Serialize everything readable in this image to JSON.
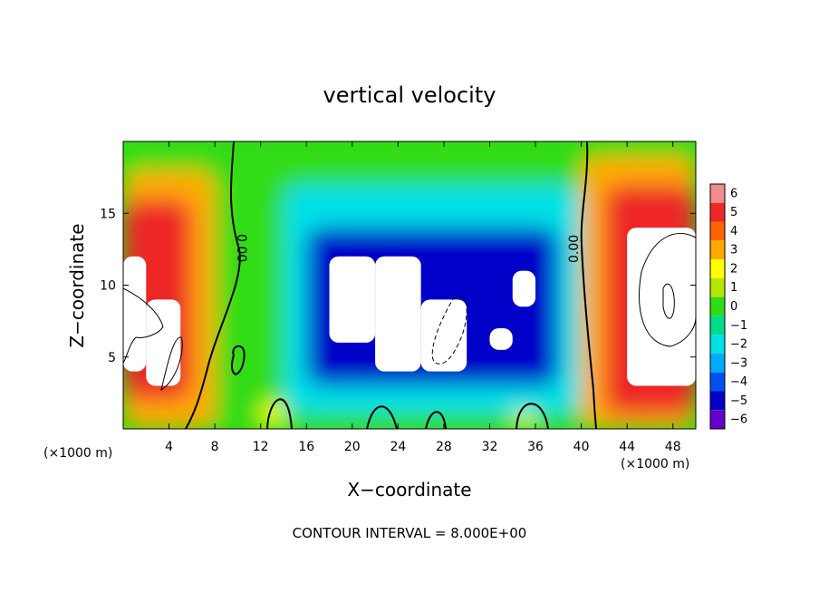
{
  "chart_data": {
    "type": "heatmap",
    "title": "vertical velocity",
    "xlabel": "X−coordinate",
    "ylabel": "Z−coordinate",
    "x_units": "(×1000 m)",
    "y_units": "(×1000 m)",
    "xlim": [
      0,
      50
    ],
    "ylim": [
      0,
      20
    ],
    "x_ticks": [
      4,
      8,
      12,
      16,
      20,
      24,
      28,
      32,
      36,
      40,
      44,
      48
    ],
    "y_ticks": [
      5,
      10,
      15
    ],
    "x_tick_labels": [
      "4",
      "8",
      "12",
      "16",
      "20",
      "24",
      "28",
      "32",
      "36",
      "40",
      "44",
      "48"
    ],
    "y_tick_labels": [
      "5",
      "10",
      "15"
    ],
    "zero_contour_label": "0.00",
    "colorbar": {
      "levels": [
        6,
        5,
        4,
        3,
        2,
        1,
        0,
        -1,
        -2,
        -3,
        -4,
        -5,
        -6
      ],
      "labels": [
        "6",
        "5",
        "4",
        "3",
        "2",
        "1",
        "0",
        "−1",
        "−2",
        "−3",
        "−4",
        "−5",
        "−6"
      ],
      "colors": [
        "#f08c8c",
        "#ee2828",
        "#ff6400",
        "#ffaa00",
        "#ffff00",
        "#b4e600",
        "#32dc14",
        "#00dc8c",
        "#00e1e6",
        "#00aaff",
        "#0050f0",
        "#0000c8",
        "#6400c8"
      ]
    },
    "cells": [
      {
        "x": [
          18,
          22
        ],
        "z": [
          6,
          12
        ],
        "level": "below -6"
      },
      {
        "x": [
          22,
          26
        ],
        "z": [
          4,
          12
        ],
        "level": "below -6"
      },
      {
        "x": [
          26,
          30
        ],
        "z": [
          4,
          9
        ],
        "level": "below -6"
      },
      {
        "x": [
          34,
          36
        ],
        "z": [
          8.5,
          11
        ],
        "level": "below -6"
      },
      {
        "x": [
          32,
          34
        ],
        "z": [
          5.5,
          7
        ],
        "level": "below -6"
      },
      {
        "x": [
          16,
          38
        ],
        "z": [
          3,
          14
        ],
        "level": -5
      },
      {
        "x": [
          14,
          40
        ],
        "z": [
          1,
          17
        ],
        "level": -2
      },
      {
        "x": [
          0,
          2
        ],
        "z": [
          4,
          12
        ],
        "level": "above 6"
      },
      {
        "x": [
          2,
          5
        ],
        "z": [
          3,
          9
        ],
        "level": "above 6"
      },
      {
        "x": [
          44,
          50
        ],
        "z": [
          3,
          14
        ],
        "level": "above 6"
      },
      {
        "x": [
          0,
          6
        ],
        "z": [
          2,
          16
        ],
        "level": 5
      },
      {
        "x": [
          42,
          50
        ],
        "z": [
          1,
          17
        ],
        "level": 5
      },
      {
        "x": [
          0,
          8
        ],
        "z": [
          0,
          18
        ],
        "level": 3
      },
      {
        "x": [
          40,
          50
        ],
        "z": [
          0,
          19
        ],
        "level": 3
      },
      {
        "x": [
          12,
          14
        ],
        "z": [
          0,
          2
        ],
        "level": 2
      },
      {
        "x": [
          34,
          36
        ],
        "z": [
          0,
          2
        ],
        "level": 2
      },
      {
        "x": [
          0,
          50
        ],
        "z": [
          0,
          20
        ],
        "level": 0
      }
    ],
    "grid": false,
    "legend_position": "right",
    "annotation": "CONTOUR INTERVAL = 8.000E+00"
  },
  "colors": {
    "below_scale": "#ffffff",
    "background_level": "#32dc14",
    "contour": "#000000"
  }
}
